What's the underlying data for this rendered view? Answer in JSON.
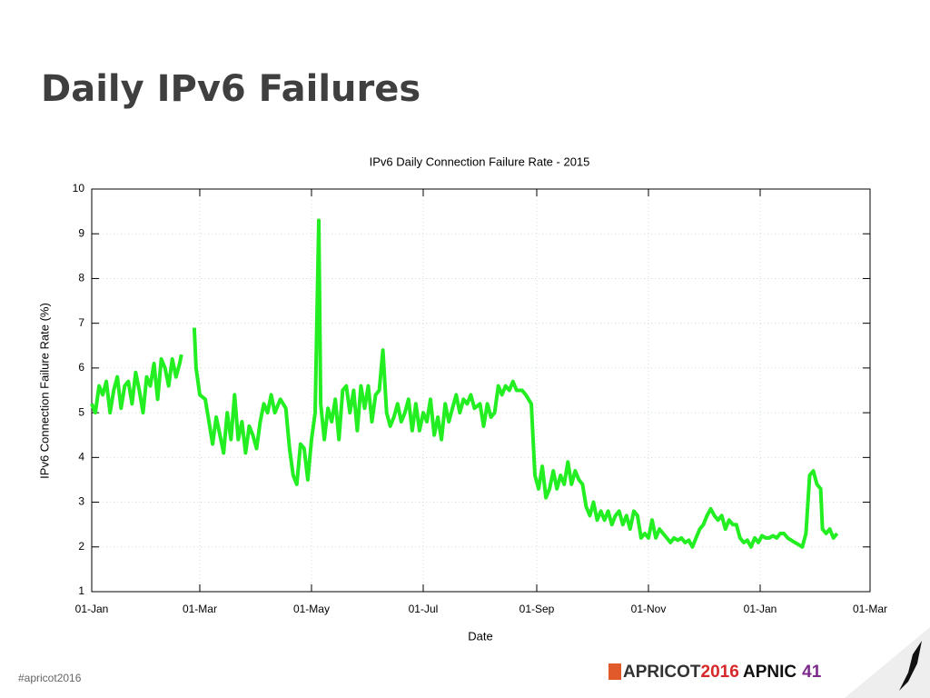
{
  "header": {
    "title": "Daily IPv6 Failures"
  },
  "footer": {
    "hashtag": "#apricot2016",
    "logo_apricot": "APRICOT",
    "logo_year": "2016",
    "logo_apnic": "APNIC",
    "logo_number": "41"
  },
  "chart_data": {
    "type": "line",
    "title": "IPv6 Daily Connection Failure Rate - 2015",
    "xlabel": "Date",
    "ylabel": "IPv6 Connection Failure Rate (%)",
    "color": "#22ee22",
    "grid": true,
    "xlim": [
      0,
      425
    ],
    "ylim": [
      1,
      10
    ],
    "yticks": [
      1,
      2,
      3,
      4,
      5,
      6,
      7,
      8,
      9,
      10
    ],
    "xticks": [
      {
        "value": 0,
        "label": "01-Jan"
      },
      {
        "value": 59,
        "label": "01-Mar"
      },
      {
        "value": 120,
        "label": "01-May"
      },
      {
        "value": 181,
        "label": "01-Jul"
      },
      {
        "value": 243,
        "label": "01-Sep"
      },
      {
        "value": 304,
        "label": "01-Nov"
      },
      {
        "value": 365,
        "label": "01-Jan"
      },
      {
        "value": 425,
        "label": "01-Mar"
      }
    ],
    "x": [
      0,
      2,
      4,
      6,
      8,
      10,
      12,
      14,
      16,
      18,
      20,
      22,
      24,
      26,
      28,
      30,
      32,
      34,
      36,
      38,
      40,
      42,
      44,
      46,
      48,
      49,
      52,
      56,
      57,
      59,
      62,
      64,
      66,
      68,
      70,
      72,
      74,
      76,
      78,
      80,
      82,
      84,
      86,
      88,
      90,
      92,
      94,
      96,
      98,
      100,
      103,
      106,
      108,
      110,
      112,
      114,
      116,
      118,
      120,
      122,
      124,
      125,
      127,
      129,
      131,
      133,
      135,
      137,
      139,
      141,
      143,
      145,
      147,
      149,
      151,
      153,
      155,
      157,
      159,
      161,
      163,
      165,
      167,
      169,
      171,
      173,
      175,
      177,
      179,
      181,
      183,
      185,
      187,
      189,
      191,
      193,
      195,
      197,
      199,
      201,
      203,
      205,
      207,
      209,
      212,
      214,
      216,
      218,
      220,
      222,
      224,
      226,
      228,
      230,
      232,
      235,
      237,
      240,
      242,
      244,
      246,
      248,
      250,
      252,
      254,
      256,
      258,
      260,
      262,
      264,
      266,
      268,
      270,
      272,
      274,
      276,
      278,
      280,
      282,
      284,
      286,
      288,
      290,
      292,
      294,
      296,
      298,
      300,
      302,
      304,
      306,
      308,
      310,
      312,
      314,
      316,
      318,
      320,
      322,
      324,
      326,
      328,
      330,
      332,
      334,
      336,
      338,
      340,
      342,
      344,
      346,
      348,
      350,
      352,
      354,
      356,
      358,
      360,
      362,
      364,
      366,
      368,
      370,
      372,
      374,
      376,
      378,
      380,
      382,
      384,
      386,
      388,
      390,
      392,
      394,
      396,
      398,
      399,
      401,
      403,
      405,
      407
    ],
    "values": [
      5.2,
      5.0,
      5.6,
      5.4,
      5.7,
      5.0,
      5.5,
      5.8,
      5.1,
      5.6,
      5.7,
      5.2,
      5.9,
      5.5,
      5.0,
      5.8,
      5.6,
      6.1,
      5.3,
      6.2,
      6.0,
      5.6,
      6.2,
      5.8,
      6.1,
      6.3,
      null,
      6.9,
      6.0,
      5.4,
      5.3,
      4.8,
      4.3,
      4.9,
      4.5,
      4.1,
      5.0,
      4.4,
      5.4,
      4.4,
      4.8,
      4.1,
      4.7,
      4.5,
      4.2,
      4.8,
      5.2,
      5.0,
      5.4,
      5.0,
      5.3,
      5.1,
      4.2,
      3.6,
      3.4,
      4.3,
      4.2,
      3.5,
      4.4,
      5.0,
      9.3,
      5.2,
      4.4,
      5.1,
      4.8,
      5.3,
      4.4,
      5.5,
      5.6,
      5.0,
      5.5,
      4.6,
      5.6,
      5.1,
      5.6,
      4.8,
      5.4,
      5.5,
      6.4,
      5.0,
      4.7,
      4.9,
      5.2,
      4.8,
      5.0,
      5.3,
      4.6,
      5.2,
      4.6,
      5.0,
      4.8,
      5.3,
      4.5,
      4.9,
      4.4,
      5.2,
      4.8,
      5.1,
      5.4,
      5.0,
      5.3,
      5.2,
      5.4,
      5.1,
      5.2,
      4.7,
      5.2,
      4.9,
      5.0,
      5.6,
      5.4,
      5.6,
      5.5,
      5.7,
      5.5,
      5.5,
      5.4,
      5.2,
      3.6,
      3.3,
      3.8,
      3.1,
      3.3,
      3.7,
      3.3,
      3.6,
      3.4,
      3.9,
      3.4,
      3.7,
      3.5,
      3.4,
      2.9,
      2.7,
      3.0,
      2.6,
      2.8,
      2.6,
      2.8,
      2.5,
      2.7,
      2.8,
      2.5,
      2.7,
      2.4,
      2.8,
      2.7,
      2.2,
      2.3,
      2.2,
      2.6,
      2.2,
      2.4,
      2.3,
      2.2,
      2.1,
      2.2,
      2.15,
      2.2,
      2.1,
      2.15,
      2.0,
      2.2,
      2.4,
      2.5,
      2.7,
      2.85,
      2.7,
      2.6,
      2.7,
      2.4,
      2.6,
      2.5,
      2.5,
      2.2,
      2.1,
      2.15,
      2.0,
      2.2,
      2.1,
      2.25,
      2.2,
      2.2,
      2.25,
      2.2,
      2.3,
      2.3,
      2.2,
      2.15,
      2.1,
      2.05,
      2.0,
      2.3,
      3.6,
      3.7,
      3.4,
      3.3,
      2.4,
      2.3,
      2.4,
      2.2,
      2.3
    ]
  }
}
